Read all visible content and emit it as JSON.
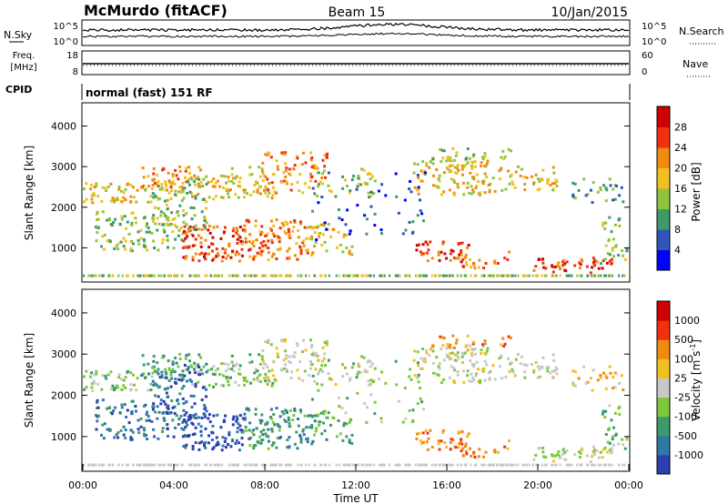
{
  "header": {
    "station": "McMurdo (fitACF)",
    "beam": "Beam 15",
    "date": "10/Jan/2015"
  },
  "noise_panel": {
    "left_label": "N.Sky",
    "left_ticks": [
      "10^5",
      "10^0"
    ],
    "right_ticks": [
      "10^5",
      "10^0"
    ],
    "right_label": "N.Search"
  },
  "freq_panel": {
    "left_label_1": "Freq.",
    "left_label_2": "[MHz]",
    "left_ticks": [
      "18",
      "8"
    ],
    "right_ticks": [
      "60",
      "0"
    ],
    "right_label": "Nave"
  },
  "cpid": {
    "label": "CPID",
    "value": "normal (fast) 151 RF"
  },
  "chart_data": [
    {
      "type": "heatmap",
      "parameter": "Power",
      "colorbar_label": "Power [dB]",
      "colorbar_ticks": [
        "28",
        "24",
        "20",
        "16",
        "12",
        "8",
        "4"
      ],
      "colorbar_colors": [
        "#0000ff",
        "#2e55b8",
        "#3f9a6a",
        "#8fc43c",
        "#f0c020",
        "#f08a10",
        "#f03010",
        "#d00000"
      ],
      "ylabel": "Slant Range [km]",
      "ylim": [
        180,
        4550
      ],
      "yticks": [
        "4000",
        "3000",
        "2000",
        "1000"
      ],
      "ytick_values": [
        4000,
        3000,
        2000,
        1000
      ],
      "xlim_hours": [
        0,
        24
      ]
    },
    {
      "type": "heatmap",
      "parameter": "Velocity",
      "colorbar_label": "Velocity [m s",
      "colorbar_label_sup": "-1",
      "colorbar_ticks": [
        "1000",
        "500",
        "100",
        "25",
        "-25",
        "-100",
        "-500",
        "-1000"
      ],
      "colorbar_colors": [
        "#2a3fb0",
        "#2e78a8",
        "#3f9a6a",
        "#7cc83c",
        "#c8c8c8",
        "#f0c020",
        "#f08a10",
        "#f03010",
        "#d00000"
      ],
      "ylabel": "Slant Range [km]",
      "ylim": [
        180,
        4550
      ],
      "yticks": [
        "4000",
        "3000",
        "2000",
        "1000"
      ],
      "ytick_values": [
        4000,
        3000,
        2000,
        1000
      ],
      "xlim_hours": [
        0,
        24
      ],
      "xlabel": "Time UT",
      "xticks": [
        "00:00",
        "04:00",
        "08:00",
        "12:00",
        "16:00",
        "20:00",
        "00:00"
      ]
    }
  ]
}
